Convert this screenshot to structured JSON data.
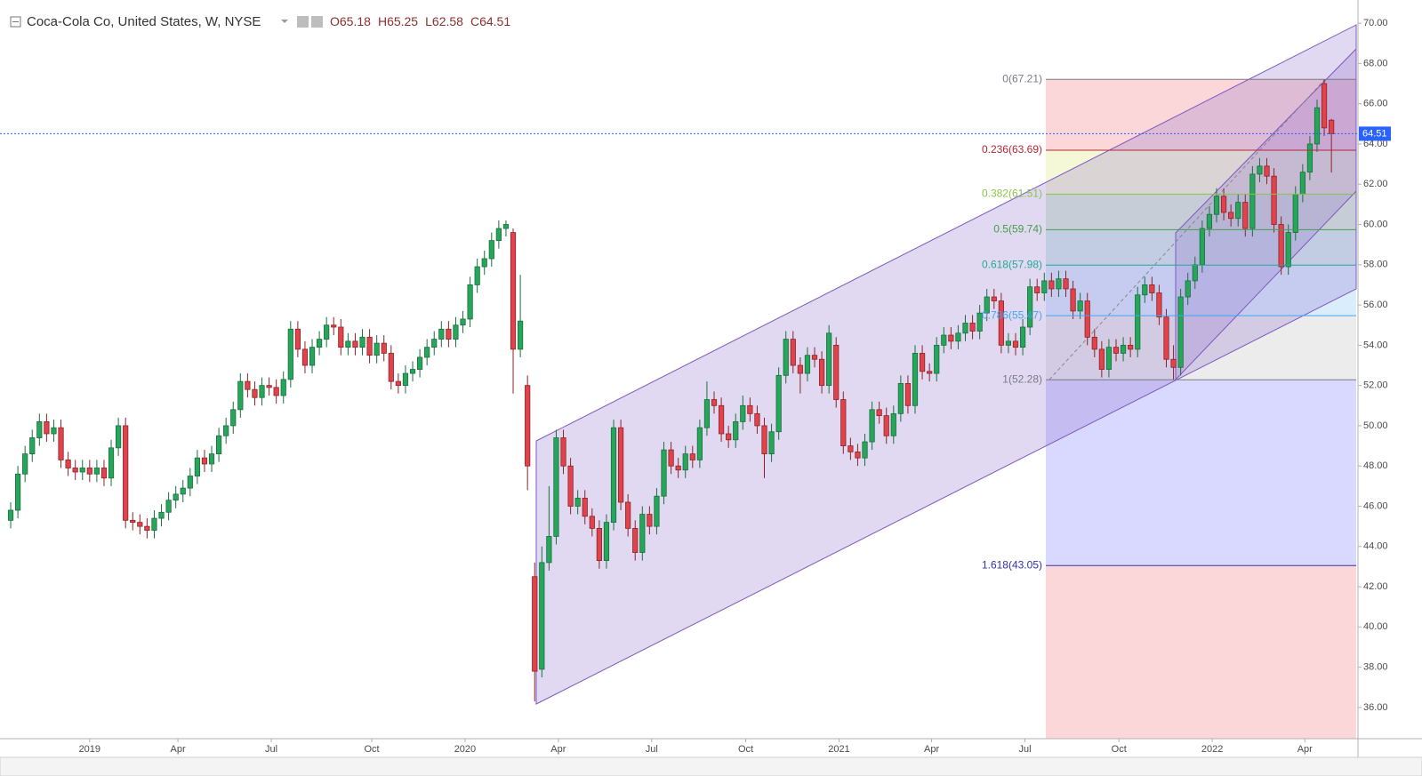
{
  "chart_data": {
    "type": "candlestick",
    "title": "Coca-Cola Co, United States, W, NYSE",
    "ohlc_labels": [
      "O",
      "H",
      "L",
      "C"
    ],
    "up_color": "#26a65b",
    "down_color": "#e0434c",
    "price_line_color": "#2962ff",
    "categories": [
      null,
      null,
      null,
      null,
      null,
      null,
      null,
      null,
      null,
      null,
      null,
      null,
      null,
      null,
      null,
      null,
      null,
      null,
      null,
      null,
      null,
      null,
      null,
      null,
      null,
      null,
      null,
      null,
      null,
      null,
      null,
      null,
      null,
      null,
      null,
      null,
      null,
      null,
      null,
      null,
      null,
      null,
      null,
      null,
      null,
      null,
      null,
      null,
      null,
      null,
      null,
      null,
      null,
      null,
      null,
      null,
      null,
      null,
      null,
      null,
      null,
      null,
      null,
      null,
      null,
      null,
      null,
      null,
      null,
      null,
      null,
      null,
      null,
      null,
      null,
      null,
      null,
      null,
      null,
      null,
      null,
      null,
      null,
      null,
      null,
      null,
      null,
      null,
      null,
      null,
      null,
      null,
      null,
      null,
      null,
      null,
      null,
      null,
      null,
      null,
      null,
      null,
      null,
      null,
      null,
      null,
      null,
      null,
      null,
      null,
      null,
      null,
      null,
      null,
      null,
      null,
      null,
      null,
      null,
      null,
      null,
      null,
      null,
      null,
      null,
      null,
      null,
      null,
      null,
      null,
      null,
      null,
      null,
      null,
      null,
      null,
      null,
      null,
      null,
      null,
      null,
      null,
      null,
      null,
      null,
      null,
      null,
      null,
      null,
      null,
      null,
      null,
      null,
      null,
      null,
      null,
      null,
      null,
      null,
      null,
      null,
      null,
      null,
      null,
      null,
      null,
      null,
      null,
      null,
      null,
      null,
      null,
      null,
      null,
      null,
      null,
      null,
      null,
      null,
      null,
      null,
      null,
      null,
      null,
      null
    ],
    "open": [
      45.3,
      45.8,
      47.6,
      48.6,
      49.4,
      50.2,
      49.6,
      49.9,
      48.3,
      47.9,
      47.7,
      47.9,
      47.6,
      47.9,
      47.4,
      48.9,
      50.0,
      45.3,
      45.2,
      45.0,
      44.8,
      45.4,
      45.7,
      46.3,
      46.6,
      46.9,
      47.5,
      48.4,
      48.1,
      48.6,
      49.5,
      50.0,
      50.8,
      52.2,
      51.8,
      51.4,
      52.0,
      51.9,
      51.5,
      52.3,
      54.8,
      53.8,
      53.0,
      53.9,
      54.3,
      55.0,
      54.9,
      53.9,
      54.2,
      53.9,
      54.4,
      53.5,
      54.1,
      53.6,
      52.2,
      52.0,
      52.6,
      52.8,
      53.4,
      53.9,
      54.3,
      54.8,
      54.3,
      55.0,
      55.3,
      57.0,
      57.9,
      58.3,
      59.2,
      59.8,
      59.6,
      53.8,
      52.0,
      42.5,
      37.9,
      43.2,
      44.5,
      49.4,
      48.0,
      46.0,
      46.4,
      45.5,
      44.9,
      43.3,
      45.2,
      49.9,
      46.2,
      44.9,
      43.7,
      45.6,
      45.0,
      46.5,
      48.8,
      48.0,
      47.8,
      48.6,
      48.3,
      49.9,
      51.3,
      51.0,
      49.6,
      49.3,
      50.2,
      51.0,
      50.6,
      50.0,
      48.6,
      49.7,
      52.5,
      54.3,
      53.0,
      52.6,
      53.5,
      53.3,
      52.0,
      54.0,
      51.3,
      49.0,
      48.7,
      48.4,
      49.2,
      50.8,
      50.5,
      49.5,
      50.6,
      52.1,
      51.0,
      53.6,
      52.7,
      52.6,
      54.0,
      54.5,
      54.2,
      54.6,
      55.1,
      54.7,
      55.6,
      56.4,
      56.2,
      54.0,
      54.2,
      53.9,
      54.9,
      56.9,
      56.6,
      57.2,
      56.8,
      57.3,
      56.8,
      55.7,
      56.2,
      54.4,
      53.8,
      52.8,
      53.9,
      53.6,
      54.0,
      53.8,
      56.5,
      57.0,
      56.6,
      55.4,
      53.3,
      52.9,
      56.4,
      57.2,
      58.0,
      59.8,
      60.5,
      61.4,
      60.6,
      60.3,
      61.1,
      59.8,
      62.5,
      62.9,
      62.4,
      60.0,
      57.9,
      59.6,
      61.5,
      62.6,
      64.0,
      67.0,
      65.18
    ],
    "high": [
      46.2,
      48.0,
      49.0,
      49.8,
      50.6,
      50.6,
      50.3,
      50.3,
      48.7,
      48.3,
      48.3,
      48.3,
      48.3,
      48.3,
      49.3,
      50.4,
      50.4,
      45.7,
      45.6,
      45.4,
      45.8,
      46.1,
      46.7,
      47.0,
      47.3,
      47.9,
      48.8,
      48.8,
      49.0,
      49.9,
      50.4,
      51.2,
      52.6,
      52.6,
      52.2,
      52.4,
      52.4,
      52.3,
      52.7,
      55.2,
      55.2,
      54.2,
      54.3,
      54.7,
      55.4,
      55.4,
      55.3,
      54.6,
      54.6,
      54.8,
      54.8,
      54.5,
      54.5,
      54.0,
      52.6,
      53.0,
      53.2,
      53.8,
      54.3,
      54.7,
      55.2,
      55.2,
      55.4,
      55.7,
      57.4,
      58.3,
      58.7,
      59.6,
      60.2,
      60.2,
      59.8,
      57.5,
      52.5,
      43.2,
      44.0,
      47.0,
      49.8,
      49.8,
      48.4,
      46.8,
      46.8,
      45.9,
      45.3,
      45.6,
      50.3,
      50.3,
      46.6,
      45.3,
      46.0,
      46.0,
      46.9,
      49.2,
      49.2,
      48.4,
      49.0,
      49.0,
      50.3,
      52.2,
      51.7,
      51.4,
      50.0,
      50.6,
      51.5,
      51.4,
      51.0,
      50.4,
      50.1,
      52.9,
      54.7,
      54.7,
      53.4,
      53.9,
      53.9,
      53.7,
      55.0,
      54.4,
      51.7,
      49.4,
      49.1,
      49.6,
      51.2,
      51.2,
      50.9,
      51.0,
      52.5,
      52.5,
      54.0,
      54.0,
      53.1,
      54.4,
      54.9,
      54.9,
      55.0,
      55.5,
      55.5,
      56.0,
      56.8,
      56.8,
      56.6,
      54.6,
      54.6,
      55.3,
      57.3,
      57.3,
      57.6,
      57.6,
      57.7,
      57.7,
      57.2,
      56.6,
      56.6,
      54.8,
      54.2,
      54.3,
      54.3,
      54.4,
      54.4,
      56.9,
      57.4,
      57.4,
      57.0,
      55.8,
      54.0,
      56.8,
      57.6,
      58.4,
      60.2,
      60.9,
      61.8,
      61.8,
      61.0,
      61.5,
      61.5,
      62.9,
      63.3,
      63.3,
      62.8,
      60.4,
      60.0,
      61.9,
      63.0,
      64.4,
      66.2,
      67.21,
      65.25
    ],
    "low": [
      44.9,
      45.4,
      47.2,
      48.2,
      49.0,
      49.2,
      49.2,
      47.9,
      47.5,
      47.3,
      47.3,
      47.2,
      47.2,
      47.0,
      47.0,
      48.5,
      44.9,
      44.8,
      44.6,
      44.4,
      44.4,
      45.0,
      45.3,
      45.9,
      46.2,
      46.5,
      47.1,
      47.7,
      47.7,
      48.2,
      49.1,
      49.6,
      50.4,
      51.4,
      51.0,
      51.0,
      51.5,
      51.1,
      51.1,
      51.9,
      53.4,
      52.6,
      52.6,
      53.5,
      53.9,
      54.5,
      53.5,
      53.5,
      53.5,
      53.5,
      53.1,
      53.1,
      53.2,
      51.8,
      51.6,
      51.6,
      52.2,
      52.4,
      53.0,
      53.5,
      53.9,
      53.9,
      53.9,
      54.6,
      54.9,
      56.6,
      57.5,
      57.9,
      58.8,
      59.4,
      51.6,
      53.4,
      46.8,
      36.3,
      37.5,
      42.8,
      44.1,
      47.6,
      45.6,
      45.6,
      45.1,
      44.5,
      42.9,
      42.9,
      44.8,
      45.8,
      44.5,
      43.3,
      43.3,
      44.6,
      44.6,
      46.1,
      47.6,
      47.4,
      47.4,
      47.9,
      47.9,
      49.5,
      50.6,
      49.2,
      48.9,
      48.9,
      49.8,
      50.2,
      49.6,
      47.4,
      48.2,
      49.3,
      52.1,
      52.6,
      51.6,
      52.2,
      52.9,
      51.6,
      51.6,
      50.9,
      48.6,
      48.3,
      48.0,
      48.0,
      48.8,
      50.1,
      49.1,
      49.1,
      50.2,
      50.6,
      50.6,
      52.3,
      52.2,
      52.2,
      53.6,
      53.8,
      53.8,
      54.2,
      54.3,
      54.3,
      55.2,
      55.8,
      53.6,
      53.6,
      53.5,
      53.5,
      54.5,
      56.2,
      56.2,
      56.4,
      56.4,
      56.4,
      55.3,
      55.3,
      54.0,
      53.4,
      52.4,
      52.4,
      53.2,
      53.2,
      53.4,
      53.4,
      56.1,
      56.2,
      55.0,
      52.9,
      52.28,
      52.5,
      56.0,
      56.8,
      57.6,
      59.4,
      60.1,
      60.2,
      59.9,
      59.9,
      59.4,
      59.4,
      62.1,
      62.0,
      59.6,
      57.5,
      57.5,
      59.2,
      61.1,
      62.2,
      63.6,
      64.4,
      62.58
    ],
    "close": [
      45.8,
      47.6,
      48.6,
      49.4,
      50.2,
      49.6,
      49.9,
      48.3,
      47.9,
      47.7,
      47.9,
      47.6,
      47.9,
      47.4,
      48.9,
      50.0,
      45.3,
      45.2,
      45.0,
      44.8,
      45.4,
      45.7,
      46.3,
      46.6,
      46.9,
      47.5,
      48.4,
      48.1,
      48.6,
      49.5,
      50.0,
      50.8,
      52.2,
      51.8,
      51.4,
      52.0,
      51.9,
      51.5,
      52.3,
      54.8,
      53.8,
      53.0,
      53.9,
      54.3,
      55.0,
      54.9,
      53.9,
      54.2,
      53.9,
      54.4,
      53.5,
      54.1,
      53.6,
      52.2,
      52.0,
      52.6,
      52.8,
      53.4,
      53.9,
      54.3,
      54.8,
      54.3,
      55.0,
      55.3,
      57.0,
      57.9,
      58.3,
      59.2,
      59.8,
      60.0,
      53.8,
      55.2,
      48.0,
      37.8,
      43.2,
      44.5,
      49.4,
      48.0,
      46.0,
      46.4,
      45.5,
      44.9,
      43.3,
      45.2,
      49.9,
      46.2,
      44.9,
      43.7,
      45.6,
      45.0,
      46.5,
      48.8,
      48.0,
      47.8,
      48.6,
      48.3,
      49.9,
      51.3,
      51.0,
      49.6,
      49.3,
      50.2,
      51.0,
      50.6,
      50.0,
      48.6,
      49.7,
      52.5,
      54.3,
      53.0,
      52.6,
      53.5,
      53.3,
      52.0,
      54.6,
      51.3,
      49.0,
      48.7,
      48.4,
      49.2,
      50.8,
      50.5,
      49.5,
      50.6,
      52.1,
      51.0,
      53.6,
      52.7,
      52.6,
      54.0,
      54.5,
      54.2,
      54.6,
      55.1,
      54.7,
      55.6,
      56.4,
      56.2,
      54.0,
      54.2,
      53.9,
      54.9,
      56.9,
      56.6,
      57.2,
      56.8,
      57.3,
      56.8,
      55.7,
      56.2,
      54.4,
      53.8,
      52.8,
      53.9,
      53.6,
      54.0,
      53.8,
      56.5,
      57.0,
      56.6,
      55.4,
      53.3,
      52.9,
      56.4,
      57.2,
      58.0,
      59.8,
      60.5,
      61.4,
      60.6,
      60.3,
      61.1,
      59.8,
      62.5,
      62.9,
      62.4,
      60.0,
      57.9,
      59.6,
      61.5,
      62.6,
      64.0,
      65.8,
      64.8,
      64.51
    ],
    "xlim": [
      -0.5,
      187.7
    ],
    "xticks": [
      {
        "value": 11,
        "label": "2019"
      },
      {
        "value": 23.3,
        "label": "Apr"
      },
      {
        "value": 36.3,
        "label": "Jul"
      },
      {
        "value": 50.3,
        "label": "Oct"
      },
      {
        "value": 63.3,
        "label": "2020"
      },
      {
        "value": 76.3,
        "label": "Apr"
      },
      {
        "value": 89.3,
        "label": "Jul"
      },
      {
        "value": 102.4,
        "label": "Oct"
      },
      {
        "value": 115.4,
        "label": "2021"
      },
      {
        "value": 128.3,
        "label": "Apr"
      },
      {
        "value": 141.3,
        "label": "Jul"
      },
      {
        "value": 154.4,
        "label": "Oct"
      },
      {
        "value": 167.4,
        "label": "2022"
      },
      {
        "value": 180.3,
        "label": "Apr"
      }
    ],
    "ylim": [
      34.45,
      70.8
    ],
    "yticks": [
      {
        "value": 36,
        "label": "36.00"
      },
      {
        "value": 38,
        "label": "38.00"
      },
      {
        "value": 40,
        "label": "40.00"
      },
      {
        "value": 42,
        "label": "42.00"
      },
      {
        "value": 44,
        "label": "44.00"
      },
      {
        "value": 46,
        "label": "46.00"
      },
      {
        "value": 48,
        "label": "48.00"
      },
      {
        "value": 50,
        "label": "50.00"
      },
      {
        "value": 52,
        "label": "52.00"
      },
      {
        "value": 54,
        "label": "54.00"
      },
      {
        "value": 56,
        "label": "56.00"
      },
      {
        "value": 58,
        "label": "58.00"
      },
      {
        "value": 60,
        "label": "60.00"
      },
      {
        "value": 62,
        "label": "62.00"
      },
      {
        "value": 64,
        "label": "64.00"
      },
      {
        "value": 66,
        "label": "66.00"
      },
      {
        "value": 68,
        "label": "68.00"
      },
      {
        "value": 70,
        "label": "70.00"
      }
    ],
    "fib_levels": [
      {
        "label": "0(67.21)",
        "value": 67.21,
        "color": "#787b86",
        "fill": "#f23645"
      },
      {
        "label": "0.236(63.69)",
        "value": 63.69,
        "color": "#b22833",
        "fill": "#cddc39"
      },
      {
        "label": "0.382(61.51)",
        "value": 61.51,
        "color": "#8bc34a",
        "fill": "#4caf50"
      },
      {
        "label": "0.5(59.74)",
        "value": 59.74,
        "color": "#43a047",
        "fill": "#26a69a"
      },
      {
        "label": "0.618(57.98)",
        "value": 57.98,
        "color": "#26a69a",
        "fill": "#42a5f5"
      },
      {
        "label": "0.786(55.47)",
        "value": 55.47,
        "color": "#42a5f5",
        "fill": "#9e9e9e"
      },
      {
        "label": "1(52.28)",
        "value": 52.28,
        "color": "#787b86",
        "fill": "#3f3fff"
      },
      {
        "label": "1.618(43.05)",
        "value": 43.05,
        "color": "#3030b0",
        "fill": "#f23645"
      }
    ]
  }
}
